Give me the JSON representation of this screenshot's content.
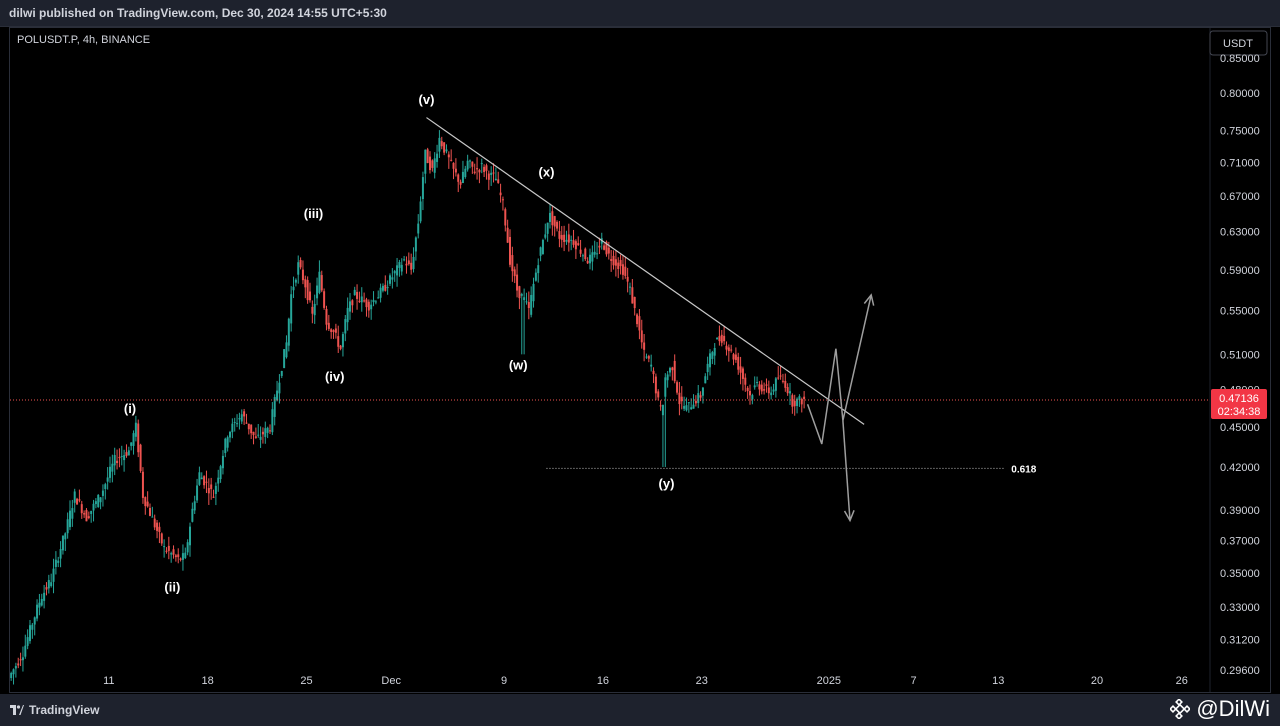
{
  "header": {
    "published": "dilwi published on TradingView.com, Dec 30, 2024 14:55 UTC+5:30"
  },
  "footer": {
    "brand": "TradingView",
    "watermark": "@DilWi"
  },
  "colors": {
    "up": "#26a69a",
    "down": "#ef5350",
    "trendline": "#c8c8c8",
    "projection": "#9e9e9e",
    "price_line": "#ef5350",
    "price_badge": "#f23645"
  },
  "chart_data": {
    "type": "candlestick",
    "title": "POLUSDT.P, 4h, BINANCE",
    "currency": "USDT",
    "ylim": [
      0.285,
      0.895
    ],
    "y_scale": "log",
    "y_ticks": [
      0.85,
      0.8,
      0.75,
      0.71,
      0.67,
      0.63,
      0.59,
      0.55,
      0.51,
      0.48,
      0.45,
      0.42,
      0.39,
      0.37,
      0.35,
      0.33,
      0.312,
      0.296
    ],
    "y_tick_labels": [
      "0.85000",
      "0.80000",
      "0.75000",
      "0.71000",
      "0.67000",
      "0.63000",
      "0.59000",
      "0.55000",
      "0.51000",
      "0.48000",
      "0.45000",
      "0.42000",
      "0.39000",
      "0.37000",
      "0.35000",
      "0.33000",
      "0.31200",
      "0.29600"
    ],
    "x_range": [
      "2024-11-04",
      "2025-01-28"
    ],
    "x_ticks": [
      {
        "label": "11",
        "date": "2024-11-11"
      },
      {
        "label": "18",
        "date": "2024-11-18"
      },
      {
        "label": "25",
        "date": "2024-11-25"
      },
      {
        "label": "Dec",
        "date": "2024-12-01"
      },
      {
        "label": "9",
        "date": "2024-12-09"
      },
      {
        "label": "16",
        "date": "2024-12-16"
      },
      {
        "label": "23",
        "date": "2024-12-23"
      },
      {
        "label": "2025",
        "date": "2025-01-01"
      },
      {
        "label": "7",
        "date": "2025-01-07"
      },
      {
        "label": "13",
        "date": "2025-01-13"
      },
      {
        "label": "20",
        "date": "2025-01-20"
      },
      {
        "label": "26",
        "date": "2025-01-26"
      }
    ],
    "last_price": {
      "value": 0.47136,
      "label": "0.47136",
      "countdown": "02:34:38"
    },
    "price_path": [
      [
        "2024-11-04T00:00",
        0.292
      ],
      [
        "2024-11-05T00:00",
        0.305
      ],
      [
        "2024-11-06T06:00",
        0.335
      ],
      [
        "2024-11-07T00:00",
        0.346
      ],
      [
        "2024-11-08T00:00",
        0.375
      ],
      [
        "2024-11-08T16:00",
        0.4
      ],
      [
        "2024-11-09T12:00",
        0.385
      ],
      [
        "2024-11-10T12:00",
        0.4
      ],
      [
        "2024-11-11T12:00",
        0.425
      ],
      [
        "2024-11-12T12:00",
        0.432
      ],
      [
        "2024-11-13T00:00",
        0.45
      ],
      [
        "2024-11-13T12:00",
        0.4
      ],
      [
        "2024-11-14T08:00",
        0.38
      ],
      [
        "2024-11-15T00:00",
        0.365
      ],
      [
        "2024-11-16T00:00",
        0.358
      ],
      [
        "2024-11-16T12:00",
        0.36
      ],
      [
        "2024-11-17T00:00",
        0.39
      ],
      [
        "2024-11-17T12:00",
        0.415
      ],
      [
        "2024-11-18T12:00",
        0.4
      ],
      [
        "2024-11-19T12:00",
        0.445
      ],
      [
        "2024-11-20T12:00",
        0.46
      ],
      [
        "2024-11-21T12:00",
        0.44
      ],
      [
        "2024-11-22T12:00",
        0.45
      ],
      [
        "2024-11-23T00:00",
        0.48
      ],
      [
        "2024-11-23T16:00",
        0.52
      ],
      [
        "2024-11-24T00:00",
        0.565
      ],
      [
        "2024-11-24T12:00",
        0.595
      ],
      [
        "2024-11-25T00:00",
        0.575
      ],
      [
        "2024-11-25T12:00",
        0.545
      ],
      [
        "2024-11-26T00:00",
        0.585
      ],
      [
        "2024-11-26T12:00",
        0.54
      ],
      [
        "2024-11-27T00:00",
        0.53
      ],
      [
        "2024-11-27T12:00",
        0.515
      ],
      [
        "2024-11-28T00:00",
        0.55
      ],
      [
        "2024-11-28T12:00",
        0.565
      ],
      [
        "2024-11-29T12:00",
        0.555
      ],
      [
        "2024-11-30T12:00",
        0.57
      ],
      [
        "2024-12-01T00:00",
        0.58
      ],
      [
        "2024-12-01T12:00",
        0.59
      ],
      [
        "2024-12-02T00:00",
        0.6
      ],
      [
        "2024-12-02T12:00",
        0.59
      ],
      [
        "2024-12-03T00:00",
        0.64
      ],
      [
        "2024-12-03T12:00",
        0.72
      ],
      [
        "2024-12-04T00:00",
        0.7
      ],
      [
        "2024-12-04T12:00",
        0.74
      ],
      [
        "2024-12-05T00:00",
        0.72
      ],
      [
        "2024-12-05T12:00",
        0.7
      ],
      [
        "2024-12-06T00:00",
        0.685
      ],
      [
        "2024-12-06T12:00",
        0.71
      ],
      [
        "2024-12-07T00:00",
        0.7
      ],
      [
        "2024-12-07T12:00",
        0.705
      ],
      [
        "2024-12-08T00:00",
        0.695
      ],
      [
        "2024-12-08T12:00",
        0.69
      ],
      [
        "2024-12-09T00:00",
        0.66
      ],
      [
        "2024-12-09T12:00",
        0.6
      ],
      [
        "2024-12-10T00:00",
        0.57
      ],
      [
        "2024-12-10T12:00",
        0.56
      ],
      [
        "2024-12-10T20:00",
        0.55
      ],
      [
        "2024-12-11T12:00",
        0.6
      ],
      [
        "2024-12-12T00:00",
        0.63
      ],
      [
        "2024-12-12T06:00",
        0.65
      ],
      [
        "2024-12-13T00:00",
        0.625
      ],
      [
        "2024-12-14T00:00",
        0.62
      ],
      [
        "2024-12-15T00:00",
        0.6
      ],
      [
        "2024-12-15T12:00",
        0.605
      ],
      [
        "2024-12-16T00:00",
        0.62
      ],
      [
        "2024-12-16T12:00",
        0.605
      ],
      [
        "2024-12-17T12:00",
        0.59
      ],
      [
        "2024-12-18T00:00",
        0.57
      ],
      [
        "2024-12-18T12:00",
        0.54
      ],
      [
        "2024-12-19T00:00",
        0.51
      ],
      [
        "2024-12-19T12:00",
        0.5
      ],
      [
        "2024-12-20T00:00",
        0.47
      ],
      [
        "2024-12-20T06:00",
        0.46
      ],
      [
        "2024-12-20T12:00",
        0.49
      ],
      [
        "2024-12-21T00:00",
        0.5
      ],
      [
        "2024-12-21T12:00",
        0.47
      ],
      [
        "2024-12-22T00:00",
        0.465
      ],
      [
        "2024-12-22T12:00",
        0.47
      ],
      [
        "2024-12-23T00:00",
        0.475
      ],
      [
        "2024-12-23T12:00",
        0.5
      ],
      [
        "2024-12-24T00:00",
        0.52
      ],
      [
        "2024-12-24T12:00",
        0.525
      ],
      [
        "2024-12-25T00:00",
        0.515
      ],
      [
        "2024-12-25T12:00",
        0.505
      ],
      [
        "2024-12-26T00:00",
        0.49
      ],
      [
        "2024-12-26T12:00",
        0.475
      ],
      [
        "2024-12-27T00:00",
        0.485
      ],
      [
        "2024-12-27T12:00",
        0.48
      ],
      [
        "2024-12-28T00:00",
        0.478
      ],
      [
        "2024-12-28T12:00",
        0.49
      ],
      [
        "2024-12-29T00:00",
        0.485
      ],
      [
        "2024-12-29T12:00",
        0.47
      ],
      [
        "2024-12-30T06:00",
        0.47136
      ]
    ],
    "spikes": [
      {
        "date": "2024-12-10T06:00",
        "low": 0.51
      },
      {
        "date": "2024-12-20T06:00",
        "low": 0.42
      }
    ],
    "annotations": [
      {
        "label": "(i)",
        "date": "2024-11-12T12:00",
        "price": 0.461
      },
      {
        "label": "(ii)",
        "date": "2024-11-15T12:00",
        "price": 0.339
      },
      {
        "label": "(iii)",
        "date": "2024-11-25T12:00",
        "price": 0.645
      },
      {
        "label": "(iv)",
        "date": "2024-11-27T00:00",
        "price": 0.487
      },
      {
        "label": "(v)",
        "date": "2024-12-03T12:00",
        "price": 0.785
      },
      {
        "label": "(w)",
        "date": "2024-12-10T00:00",
        "price": 0.497
      },
      {
        "label": "(x)",
        "date": "2024-12-12T00:00",
        "price": 0.693
      },
      {
        "label": "(y)",
        "date": "2024-12-20T12:00",
        "price": 0.405
      }
    ],
    "trendline": [
      [
        "2024-12-03T12:00",
        0.767
      ],
      [
        "2025-01-03T12:00",
        0.452
      ]
    ],
    "fib_level": {
      "label": "0.618",
      "price": 0.419,
      "from": "2024-12-12T00:00",
      "to": "2025-01-13T12:00"
    },
    "projections": [
      {
        "name": "bullish",
        "points": [
          [
            "2024-12-30T12:00",
            0.468
          ],
          [
            "2024-12-31T12:00",
            0.437
          ],
          [
            "2025-01-01T12:00",
            0.515
          ],
          [
            "2025-01-02T00:00",
            0.455
          ],
          [
            "2025-01-04T00:00",
            0.565
          ]
        ]
      },
      {
        "name": "bearish",
        "points": [
          [
            "2025-01-02T00:00",
            0.455
          ],
          [
            "2025-01-02T12:00",
            0.383
          ]
        ]
      }
    ]
  }
}
